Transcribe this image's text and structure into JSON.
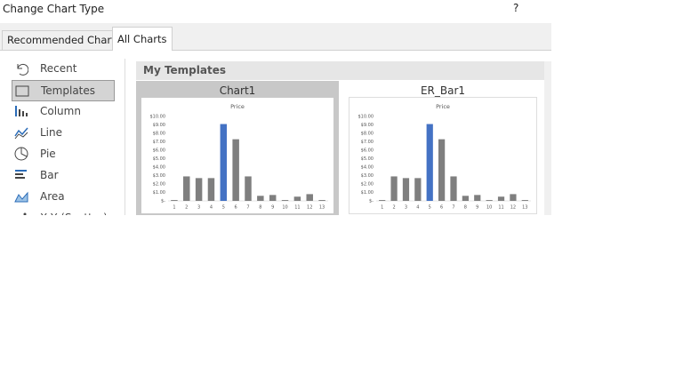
{
  "title": "Change Chart Type",
  "help": "?",
  "tabs": [
    "Recommended Charts",
    "All Charts"
  ],
  "selected_tab": 1,
  "sidebar": {
    "items": [
      "Recent",
      "Templates",
      "Column",
      "Line",
      "Pie",
      "Bar",
      "Area",
      "X Y (Scatter)"
    ],
    "selected": 1
  },
  "panel": {
    "heading": "My Templates",
    "templates": [
      {
        "name": "Chart1",
        "selected": true,
        "chart": {
          "type": "bar",
          "title": "Price",
          "categories": [
            "1",
            "2",
            "3",
            "4",
            "5",
            "6",
            "7",
            "8",
            "9",
            "10",
            "11",
            "12",
            "13"
          ],
          "values": [
            0.1,
            2.9,
            2.7,
            2.7,
            9.1,
            7.3,
            2.9,
            0.6,
            0.7,
            0.1,
            0.5,
            0.8,
            0.1
          ],
          "colors": [
            "#7f7f7f",
            "#7f7f7f",
            "#7f7f7f",
            "#7f7f7f",
            "#4472c4",
            "#7f7f7f",
            "#7f7f7f",
            "#7f7f7f",
            "#7f7f7f",
            "#7f7f7f",
            "#7f7f7f",
            "#7f7f7f",
            "#7f7f7f"
          ],
          "ylim": [
            0,
            10
          ],
          "yticks": [
            {
              "value": 10,
              "label": "$10.00"
            },
            {
              "value": 9,
              "label": "$9.00"
            },
            {
              "value": 8,
              "label": "$8.00"
            },
            {
              "value": 7,
              "label": "$7.00"
            },
            {
              "value": 6,
              "label": "$6.00"
            },
            {
              "value": 5,
              "label": "$5.00"
            },
            {
              "value": 4,
              "label": "$4.00"
            },
            {
              "value": 3,
              "label": "$3.00"
            },
            {
              "value": 2,
              "label": "$2.00"
            },
            {
              "value": 1,
              "label": "$1.00"
            },
            {
              "value": 0,
              "label": "$-"
            }
          ]
        }
      },
      {
        "name": "ER_Bar1",
        "selected": false,
        "chart": {
          "type": "bar",
          "title": "Price",
          "categories": [
            "1",
            "2",
            "3",
            "4",
            "5",
            "6",
            "7",
            "8",
            "9",
            "10",
            "11",
            "12",
            "13"
          ],
          "values": [
            0.1,
            2.9,
            2.7,
            2.7,
            9.1,
            7.3,
            2.9,
            0.6,
            0.7,
            0.1,
            0.5,
            0.8,
            0.1
          ],
          "colors": [
            "#7f7f7f",
            "#7f7f7f",
            "#7f7f7f",
            "#7f7f7f",
            "#4472c4",
            "#7f7f7f",
            "#7f7f7f",
            "#7f7f7f",
            "#7f7f7f",
            "#7f7f7f",
            "#7f7f7f",
            "#7f7f7f",
            "#7f7f7f"
          ],
          "ylim": [
            0,
            10
          ],
          "yticks": [
            {
              "value": 10,
              "label": "$10.00"
            },
            {
              "value": 9,
              "label": "$9.00"
            },
            {
              "value": 8,
              "label": "$8.00"
            },
            {
              "value": 7,
              "label": "$7.00"
            },
            {
              "value": 6,
              "label": "$6.00"
            },
            {
              "value": 5,
              "label": "$5.00"
            },
            {
              "value": 4,
              "label": "$4.00"
            },
            {
              "value": 3,
              "label": "$3.00"
            },
            {
              "value": 2,
              "label": "$2.00"
            },
            {
              "value": 1,
              "label": "$1.00"
            },
            {
              "value": 0,
              "label": "$-"
            }
          ]
        }
      }
    ]
  }
}
